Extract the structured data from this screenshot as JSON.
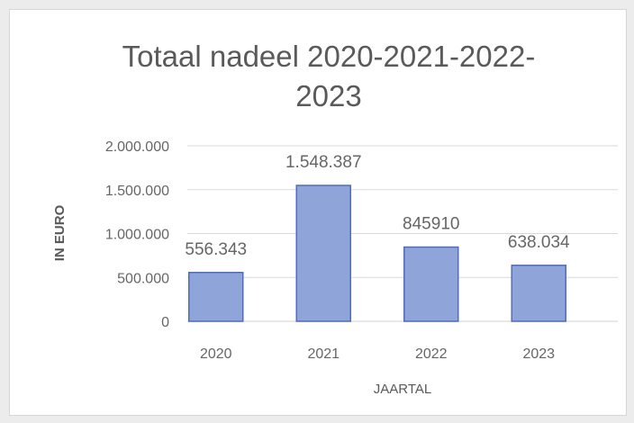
{
  "chart_data": {
    "type": "bar",
    "title_lines": [
      "Totaal nadeel 2020-2021-2022-",
      "2023"
    ],
    "xlabel": "JAARTAL",
    "ylabel": "IN EURO",
    "categories": [
      "2020",
      "2021",
      "2022",
      "2023"
    ],
    "values": [
      556343,
      1548387,
      845910,
      638034
    ],
    "data_labels": [
      "556.343",
      "1.548.387",
      "845910",
      "638.034"
    ],
    "ylim": [
      0,
      2000000
    ],
    "yticks": [
      0,
      500000,
      1000000,
      1500000,
      2000000
    ],
    "ytick_labels": [
      "0",
      "500.000",
      "1.000.000",
      "1.500.000",
      "2.000.000"
    ],
    "grid": true,
    "legend": "none",
    "bar_color": "#8fa4d9",
    "bar_edge_color": "#4f6cbf",
    "grid_color": "#d9d9d9"
  }
}
